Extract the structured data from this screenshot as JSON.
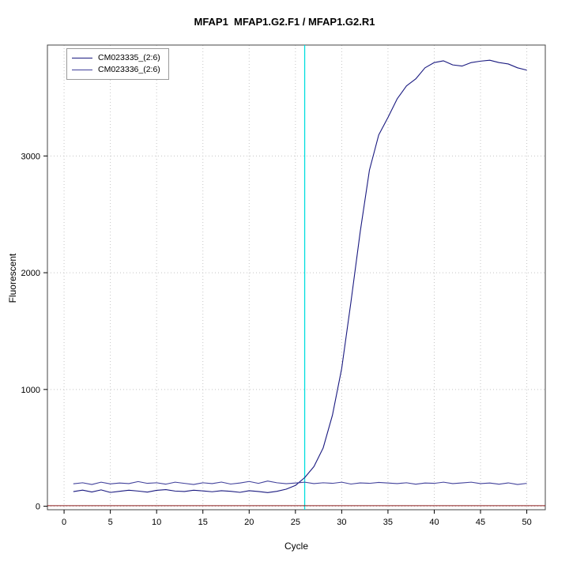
{
  "chart_data": {
    "type": "line",
    "title": "MFAP1  MFAP1.G2.F1 / MFAP1.G2.R1",
    "xlabel": "Cycle",
    "ylabel": "Fluorescent",
    "x_ticks": [
      0,
      5,
      10,
      15,
      20,
      25,
      30,
      35,
      40,
      45,
      50
    ],
    "y_ticks": [
      0,
      1000,
      2000,
      3000
    ],
    "xlim": [
      -1.8,
      52
    ],
    "ylim": [
      -30,
      3950
    ],
    "grid": "dotted",
    "grid_color": "#c4c4c4",
    "box_color": "#444444",
    "threshold_line": {
      "x": 26,
      "color": "#00dede"
    },
    "baseline": {
      "y": 5,
      "color": "#8b1a1a"
    },
    "cycles": [
      1,
      2,
      3,
      4,
      5,
      6,
      7,
      8,
      9,
      10,
      11,
      12,
      13,
      14,
      15,
      16,
      17,
      18,
      19,
      20,
      21,
      22,
      23,
      24,
      25,
      26,
      27,
      28,
      29,
      30,
      31,
      32,
      33,
      34,
      35,
      36,
      37,
      38,
      39,
      40,
      41,
      42,
      43,
      44,
      45,
      46,
      47,
      48,
      49,
      50
    ],
    "series": [
      {
        "name": "CM023335_(2:6)",
        "color": "#1a1a80",
        "values": [
          125,
          138,
          122,
          140,
          118,
          128,
          137,
          130,
          121,
          136,
          142,
          130,
          126,
          137,
          131,
          124,
          133,
          128,
          119,
          133,
          126,
          117,
          128,
          146,
          178,
          245,
          340,
          500,
          780,
          1180,
          1750,
          2350,
          2880,
          3180,
          3330,
          3490,
          3600,
          3660,
          3755,
          3800,
          3815,
          3780,
          3770,
          3800,
          3812,
          3820,
          3800,
          3788,
          3755,
          3735
        ]
      },
      {
        "name": "CM023336_(2:6)",
        "color": "#41419b",
        "values": [
          192,
          201,
          186,
          206,
          191,
          199,
          194,
          211,
          196,
          201,
          189,
          206,
          196,
          186,
          201,
          194,
          207,
          190,
          199,
          212,
          196,
          216,
          201,
          193,
          199,
          206,
          194,
          201,
          196,
          206,
          190,
          200,
          196,
          204,
          199,
          194,
          201,
          189,
          199,
          196,
          206,
          194,
          200,
          206,
          194,
          199,
          189,
          200,
          186,
          196
        ]
      }
    ]
  }
}
